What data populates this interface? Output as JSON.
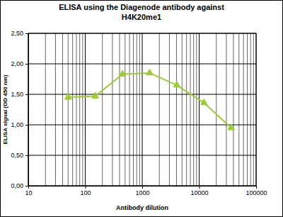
{
  "chart_data": {
    "type": "line",
    "title": [
      "ELISA using the Diagenode antibody against",
      "H4K20me1"
    ],
    "x_label": "Antibody dilution",
    "y_label": "ELISA signal (OD 450 nm)",
    "x": [
      50,
      150,
      450,
      1350,
      4050,
      12150,
      36450
    ],
    "values": [
      1.45,
      1.47,
      1.83,
      1.85,
      1.65,
      1.36,
      0.95
    ],
    "color": "#9acd32",
    "marker": "triangle",
    "log": "x",
    "grid": true,
    "xlim": [
      10,
      100000
    ],
    "xticks": [
      10,
      100,
      1000,
      10000,
      100000
    ],
    "ylim": [
      0,
      2.5
    ],
    "yticks": [
      {
        "value": 0,
        "label": "0,00"
      },
      {
        "value": 0.5,
        "label": "0,50"
      },
      {
        "value": 1,
        "label": "1,00"
      },
      {
        "value": 1.5,
        "label": "1,50"
      },
      {
        "value": 2,
        "label": "2,00"
      },
      {
        "value": 2.5,
        "label": "2,50"
      }
    ]
  }
}
